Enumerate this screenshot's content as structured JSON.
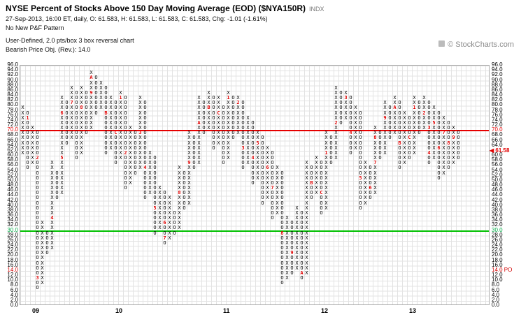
{
  "header": {
    "title": "NYSE Percent of Stocks Above 150 Day Moving Average (EOD) ($NYA150R)",
    "title_suffix": "INDX",
    "quote_line": "27-Sep-2013, 16:00 ET, daily, O: 61.583, H: 61.583, L: 61.583, C: 61.583, Chg: -1.01 (-1.61%)",
    "pattern_line": "No New P&F Pattern",
    "settings_line": "User-Defined, 2.0 pts/box 3 box reversal chart",
    "objective_line": "Bearish Price Obj. (Rev.): 14.0",
    "credit": "© StockCharts.com"
  },
  "chart_data": {
    "type": "point-and-figure",
    "title": "NYSE Percent of Stocks Above 150 Day Moving Average (EOD) ($NYA150R)",
    "box_size": 2.0,
    "reversal": 3,
    "ylim": [
      0,
      96
    ],
    "tick_step": 2.0,
    "grid": true,
    "hlines": [
      {
        "value": 70.0,
        "color": "#e60000",
        "name": "overbought-line"
      },
      {
        "value": 30.0,
        "color": "#00c000",
        "name": "oversold-line"
      }
    ],
    "tick_colors": {
      "70": "#e60000",
      "30": "#00a844",
      "14": "#d00000"
    },
    "last_price": 61.58,
    "last_price_label": "◀ 61.58",
    "price_objective": 14.0,
    "price_objective_label": "14.0 PO",
    "colors": {
      "x": "#000000",
      "o": "#000000",
      "month_marker": "#e00000"
    },
    "year_labels": [
      {
        "label": "09",
        "col": 3
      },
      {
        "label": "10",
        "col": 20
      },
      {
        "label": "11",
        "col": 42
      },
      {
        "label": "12",
        "col": 62
      },
      {
        "label": "13",
        "col": 80
      }
    ],
    "columns": [
      {
        "t": "X",
        "lo": 62,
        "hi": 80
      },
      {
        "t": "O",
        "lo": 56,
        "hi": 78,
        "m": [
          [
            76,
            "1"
          ]
        ]
      },
      {
        "t": "X",
        "lo": 58,
        "hi": 72
      },
      {
        "t": "O",
        "lo": 8,
        "hi": 70,
        "m": [
          [
            60,
            "2"
          ],
          [
            12,
            "3"
          ]
        ]
      },
      {
        "t": "X",
        "lo": 10,
        "hi": 34
      },
      {
        "t": "O",
        "lo": 22,
        "hi": 30
      },
      {
        "t": "X",
        "lo": 24,
        "hi": 58,
        "m": [
          [
            36,
            "4"
          ]
        ]
      },
      {
        "t": "O",
        "lo": 44,
        "hi": 54
      },
      {
        "t": "X",
        "lo": 46,
        "hi": 84,
        "m": [
          [
            60,
            "5"
          ],
          [
            78,
            "6"
          ]
        ]
      },
      {
        "t": "O",
        "lo": 66,
        "hi": 82
      },
      {
        "t": "X",
        "lo": 68,
        "hi": 88,
        "m": [
          [
            82,
            "7"
          ]
        ]
      },
      {
        "t": "O",
        "lo": 60,
        "hi": 86
      },
      {
        "t": "X",
        "lo": 62,
        "hi": 88,
        "m": [
          [
            80,
            "8"
          ]
        ]
      },
      {
        "t": "O",
        "lo": 70,
        "hi": 86
      },
      {
        "t": "X",
        "lo": 72,
        "hi": 94,
        "m": [
          [
            86,
            "9"
          ],
          [
            92,
            "A"
          ]
        ]
      },
      {
        "t": "O",
        "lo": 78,
        "hi": 92
      },
      {
        "t": "X",
        "lo": 80,
        "hi": 90
      },
      {
        "t": "O",
        "lo": 62,
        "hi": 88,
        "m": [
          [
            78,
            "B"
          ]
        ]
      },
      {
        "t": "X",
        "lo": 64,
        "hi": 84
      },
      {
        "t": "O",
        "lo": 58,
        "hi": 82,
        "m": [
          [
            70,
            "C"
          ]
        ]
      },
      {
        "t": "X",
        "lo": 60,
        "hi": 86,
        "m": [
          [
            84,
            "1"
          ]
        ]
      },
      {
        "t": "O",
        "lo": 48,
        "hi": 84,
        "m": [
          [
            62,
            "2"
          ]
        ]
      },
      {
        "t": "X",
        "lo": 50,
        "hi": 72
      },
      {
        "t": "O",
        "lo": 54,
        "hi": 70
      },
      {
        "t": "X",
        "lo": 56,
        "hi": 84,
        "m": [
          [
            70,
            "3"
          ]
        ]
      },
      {
        "t": "O",
        "lo": 44,
        "hi": 82,
        "m": [
          [
            56,
            "4"
          ]
        ]
      },
      {
        "t": "X",
        "lo": 46,
        "hi": 62
      },
      {
        "t": "O",
        "lo": 30,
        "hi": 60,
        "m": [
          [
            40,
            "5"
          ]
        ]
      },
      {
        "t": "X",
        "lo": 32,
        "hi": 48
      },
      {
        "t": "O",
        "lo": 26,
        "hi": 46,
        "m": [
          [
            34,
            "6"
          ],
          [
            28,
            "7"
          ]
        ]
      },
      {
        "t": "X",
        "lo": 28,
        "hi": 44
      },
      {
        "t": "O",
        "lo": 30,
        "hi": 38
      },
      {
        "t": "X",
        "lo": 32,
        "hi": 56,
        "m": [
          [
            46,
            "8"
          ]
        ]
      },
      {
        "t": "O",
        "lo": 40,
        "hi": 54
      },
      {
        "t": "X",
        "lo": 42,
        "hi": 70,
        "m": [
          [
            58,
            "9"
          ]
        ]
      },
      {
        "t": "O",
        "lo": 56,
        "hi": 68
      },
      {
        "t": "X",
        "lo": 58,
        "hi": 84,
        "m": [
          [
            74,
            "A"
          ]
        ]
      },
      {
        "t": "O",
        "lo": 70,
        "hi": 82
      },
      {
        "t": "X",
        "lo": 72,
        "hi": 86,
        "m": [
          [
            80,
            "B"
          ]
        ]
      },
      {
        "t": "O",
        "lo": 64,
        "hi": 84
      },
      {
        "t": "X",
        "lo": 66,
        "hi": 84,
        "m": [
          [
            78,
            "C"
          ]
        ]
      },
      {
        "t": "O",
        "lo": 58,
        "hi": 80
      },
      {
        "t": "X",
        "lo": 60,
        "hi": 86,
        "m": [
          [
            84,
            "1"
          ]
        ]
      },
      {
        "t": "O",
        "lo": 68,
        "hi": 84
      },
      {
        "t": "X",
        "lo": 70,
        "hi": 84,
        "m": [
          [
            82,
            "2"
          ]
        ]
      },
      {
        "t": "O",
        "lo": 56,
        "hi": 82,
        "m": [
          [
            64,
            "3"
          ]
        ]
      },
      {
        "t": "X",
        "lo": 58,
        "hi": 76
      },
      {
        "t": "O",
        "lo": 50,
        "hi": 74,
        "m": [
          [
            60,
            "4"
          ]
        ]
      },
      {
        "t": "X",
        "lo": 52,
        "hi": 70,
        "m": [
          [
            66,
            "5"
          ]
        ]
      },
      {
        "t": "O",
        "lo": 42,
        "hi": 68
      },
      {
        "t": "X",
        "lo": 44,
        "hi": 64,
        "m": [
          [
            56,
            "6"
          ]
        ]
      },
      {
        "t": "O",
        "lo": 36,
        "hi": 62,
        "m": [
          [
            48,
            "7"
          ]
        ]
      },
      {
        "t": "X",
        "lo": 38,
        "hi": 56
      },
      {
        "t": "O",
        "lo": 10,
        "hi": 54,
        "m": [
          [
            30,
            "8"
          ]
        ]
      },
      {
        "t": "X",
        "lo": 12,
        "hi": 36
      },
      {
        "t": "O",
        "lo": 14,
        "hi": 34,
        "m": [
          [
            22,
            "9"
          ]
        ]
      },
      {
        "t": "X",
        "lo": 16,
        "hi": 40
      },
      {
        "t": "O",
        "lo": 12,
        "hi": 38,
        "m": [
          [
            14,
            "A"
          ]
        ]
      },
      {
        "t": "X",
        "lo": 14,
        "hi": 58
      },
      {
        "t": "O",
        "lo": 44,
        "hi": 56,
        "m": [
          [
            50,
            "B"
          ]
        ]
      },
      {
        "t": "X",
        "lo": 46,
        "hi": 60
      },
      {
        "t": "O",
        "lo": 38,
        "hi": 58,
        "m": [
          [
            46,
            "C"
          ]
        ]
      },
      {
        "t": "X",
        "lo": 40,
        "hi": 70,
        "m": [
          [
            62,
            "1"
          ]
        ]
      },
      {
        "t": "O",
        "lo": 58,
        "hi": 68
      },
      {
        "t": "X",
        "lo": 60,
        "hi": 88,
        "m": [
          [
            74,
            "2"
          ]
        ]
      },
      {
        "t": "O",
        "lo": 74,
        "hi": 86
      },
      {
        "t": "X",
        "lo": 76,
        "hi": 86,
        "m": [
          [
            84,
            "3"
          ]
        ]
      },
      {
        "t": "O",
        "lo": 62,
        "hi": 84,
        "m": [
          [
            70,
            "4"
          ]
        ]
      },
      {
        "t": "X",
        "lo": 64,
        "hi": 80
      },
      {
        "t": "O",
        "lo": 40,
        "hi": 78,
        "m": [
          [
            52,
            "5"
          ]
        ]
      },
      {
        "t": "X",
        "lo": 42,
        "hi": 58
      },
      {
        "t": "O",
        "lo": 44,
        "hi": 56,
        "m": [
          [
            48,
            "6"
          ]
        ]
      },
      {
        "t": "X",
        "lo": 46,
        "hi": 72,
        "m": [
          [
            58,
            "7"
          ],
          [
            68,
            "8"
          ]
        ]
      },
      {
        "t": "O",
        "lo": 60,
        "hi": 70
      },
      {
        "t": "X",
        "lo": 62,
        "hi": 82,
        "m": [
          [
            76,
            "9"
          ]
        ]
      },
      {
        "t": "O",
        "lo": 68,
        "hi": 80
      },
      {
        "t": "X",
        "lo": 70,
        "hi": 84,
        "m": [
          [
            80,
            "A"
          ]
        ]
      },
      {
        "t": "O",
        "lo": 56,
        "hi": 82,
        "m": [
          [
            66,
            "B"
          ]
        ]
      },
      {
        "t": "X",
        "lo": 58,
        "hi": 78
      },
      {
        "t": "O",
        "lo": 60,
        "hi": 76,
        "m": [
          [
            68,
            "C"
          ]
        ]
      },
      {
        "t": "X",
        "lo": 62,
        "hi": 84,
        "m": [
          [
            80,
            "1"
          ]
        ]
      },
      {
        "t": "O",
        "lo": 70,
        "hi": 82
      },
      {
        "t": "X",
        "lo": 72,
        "hi": 84,
        "m": [
          [
            78,
            "2"
          ]
        ]
      },
      {
        "t": "O",
        "lo": 58,
        "hi": 82,
        "m": [
          [
            72,
            "3"
          ],
          [
            62,
            "4"
          ]
        ]
      },
      {
        "t": "X",
        "lo": 60,
        "hi": 80,
        "m": [
          [
            74,
            "5"
          ]
        ]
      },
      {
        "t": "O",
        "lo": 52,
        "hi": 78,
        "m": [
          [
            64,
            "6"
          ]
        ]
      },
      {
        "t": "X",
        "lo": 54,
        "hi": 76,
        "m": [
          [
            70,
            "7"
          ]
        ]
      },
      {
        "t": "O",
        "lo": 56,
        "hi": 74,
        "m": [
          [
            66,
            "8"
          ]
        ]
      },
      {
        "t": "X",
        "lo": 58,
        "hi": 72,
        "m": [
          [
            68,
            "9"
          ]
        ]
      },
      {
        "t": "O",
        "lo": 60,
        "hi": 70
      }
    ]
  }
}
